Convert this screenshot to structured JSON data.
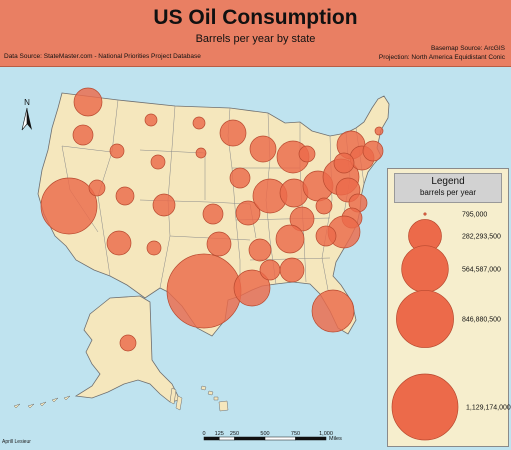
{
  "header": {
    "title": "US Oil Consumption",
    "subtitle": "Barrels per year by state",
    "data_source": "Data Source: StateMaster.com - National Priorities Project Database",
    "basemap_source": "Basemap Source: ArcGIS",
    "projection": "Projection: North America Equidistant Conic"
  },
  "north_arrow": {
    "label": "N"
  },
  "scale_bar": {
    "ticks": [
      "0",
      "125",
      "250",
      "500",
      "750",
      "1,000"
    ],
    "unit": "Miles"
  },
  "legend": {
    "title": "Legend",
    "subtitle": "barrels per year",
    "entries": [
      {
        "label": "795,000",
        "value": 795000
      },
      {
        "label": "282,293,500",
        "value": 282293500
      },
      {
        "label": "564,587,000",
        "value": 564587000
      },
      {
        "label": "846,880,500",
        "value": 846880500
      },
      {
        "label": "1,129,174,000",
        "value": 1129174000
      }
    ]
  },
  "credit": "Aprill Lesieur",
  "colors": {
    "ocean": "#bfe3ef",
    "land": "#f5e7bd",
    "circle_fill": "#ec6a4a",
    "circle_stroke": "#b8492f",
    "header": "#e97f63"
  }
}
